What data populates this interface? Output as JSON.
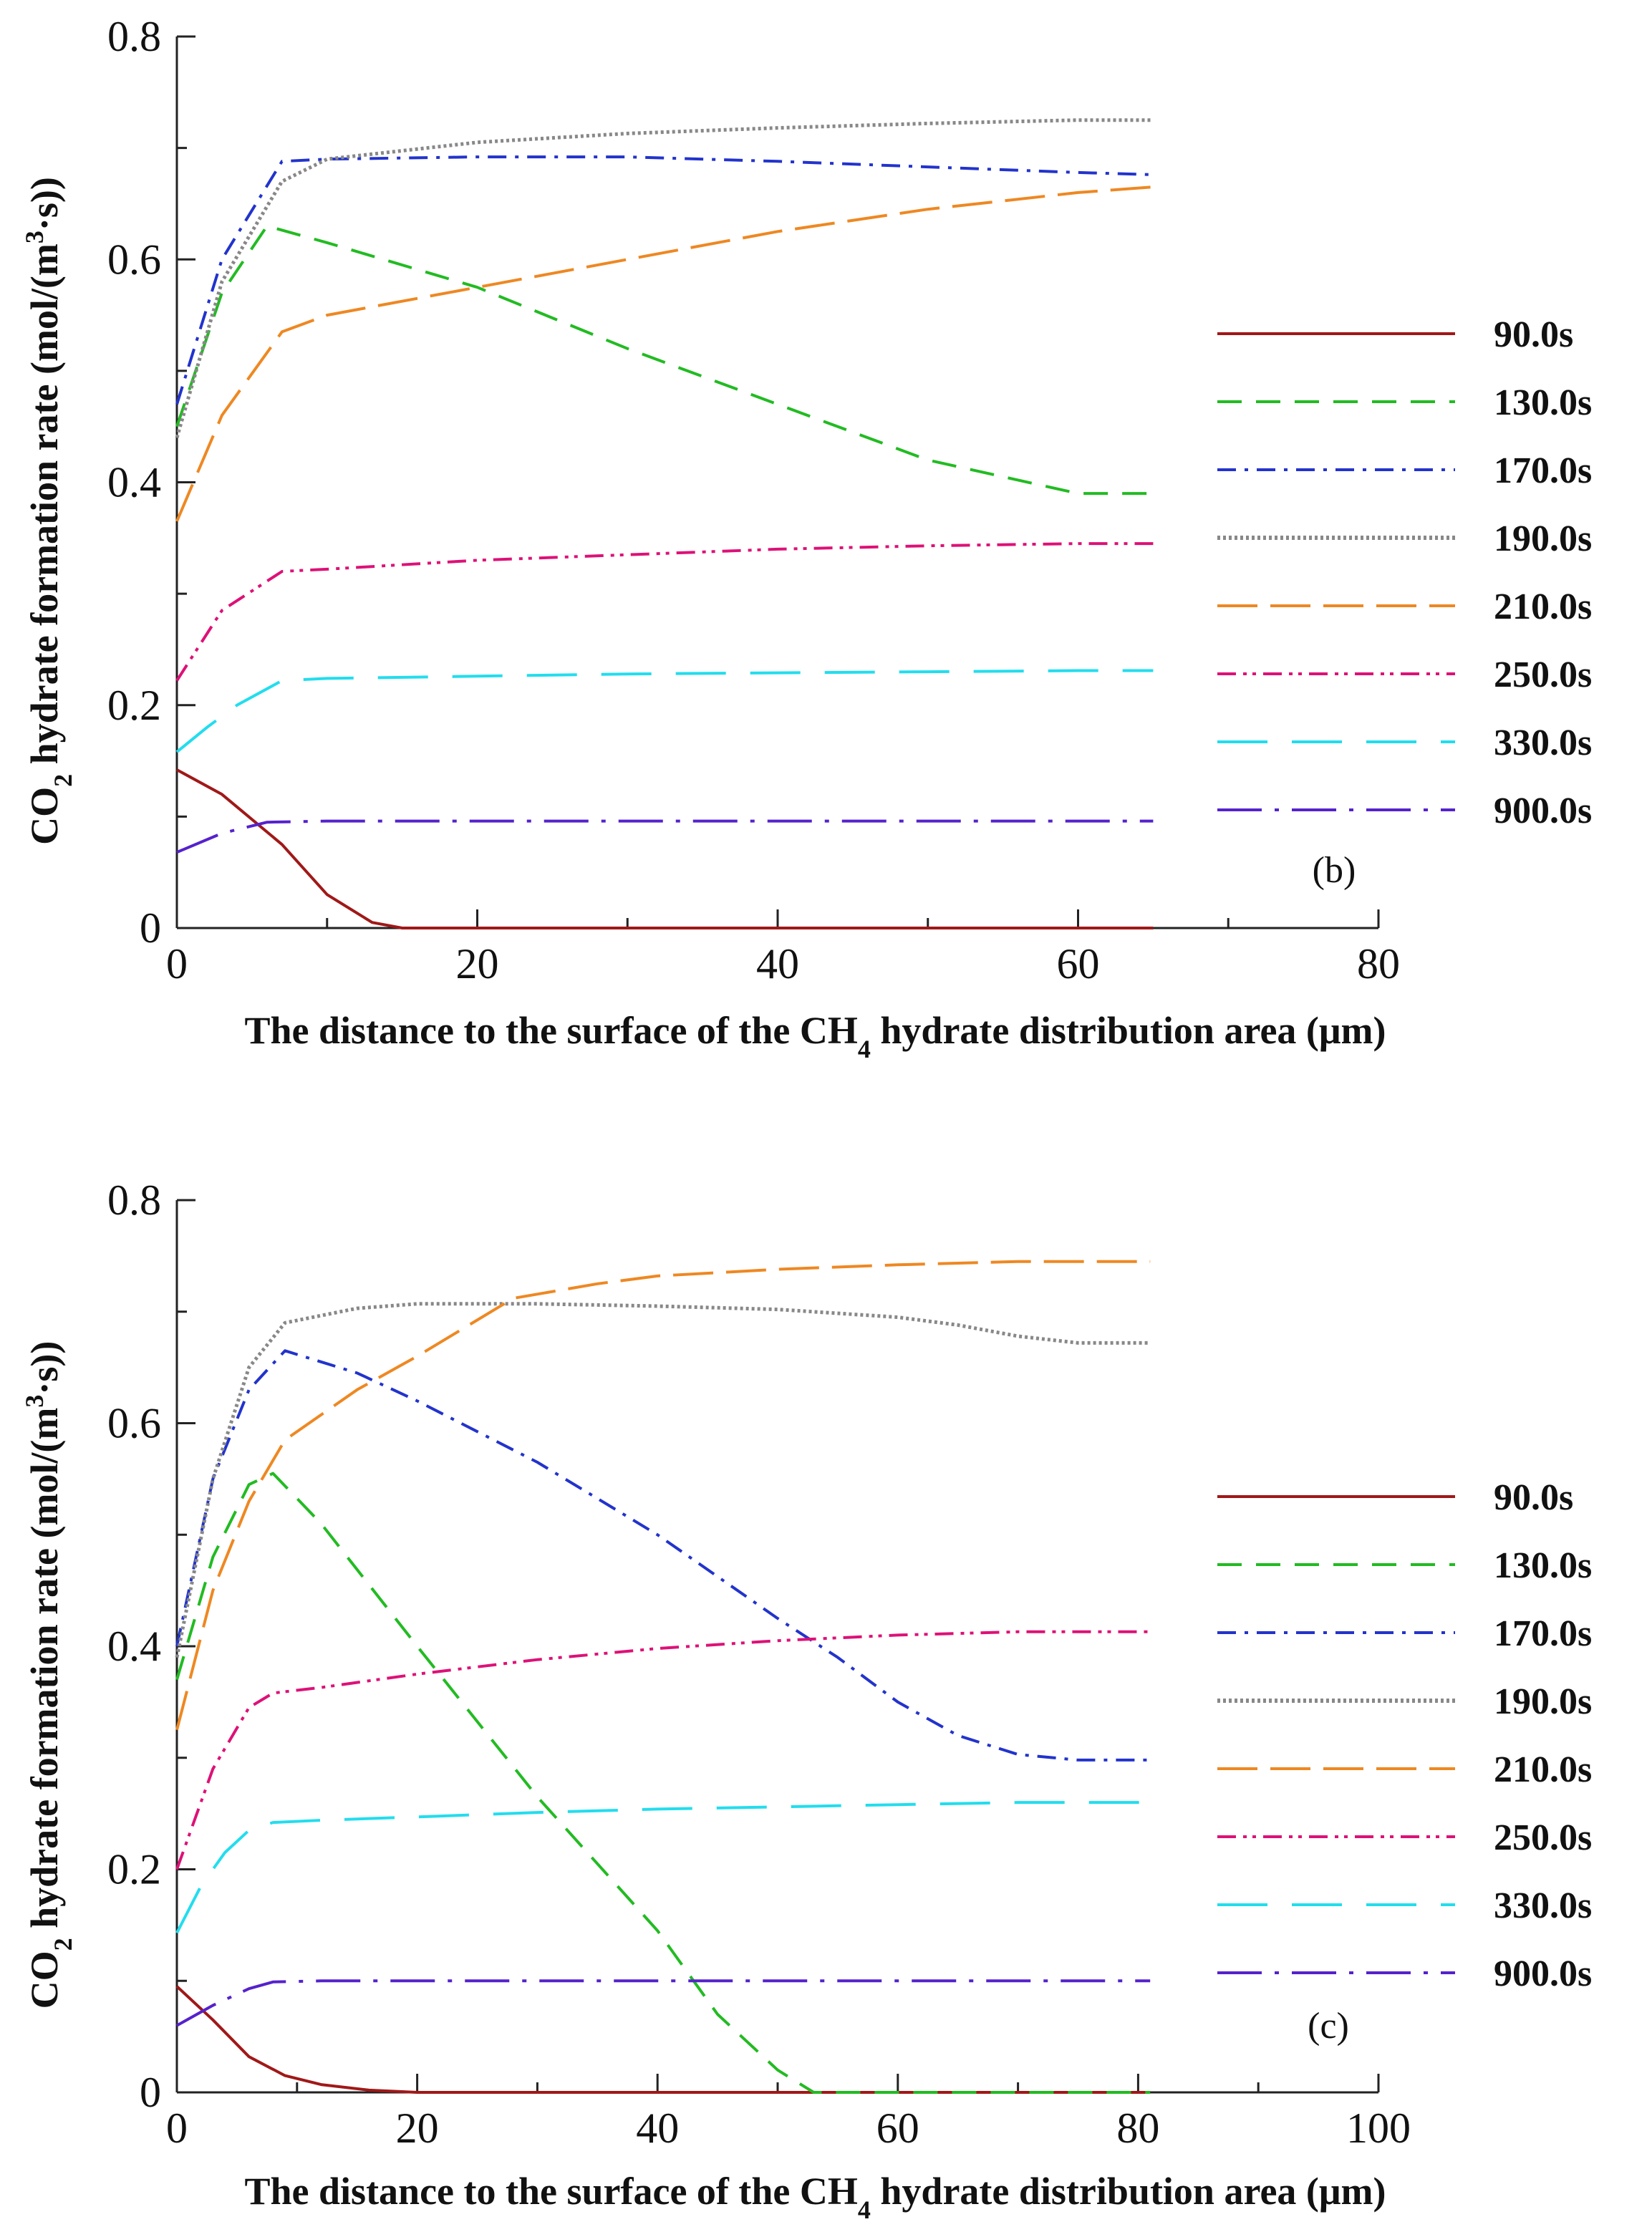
{
  "chart_data": [
    {
      "type": "line",
      "panel_label": "(b)",
      "xlabel": {
        "pre": "The distance to the surface of the CH",
        "sub": "4",
        "post": " hydrate distribution area (μm)"
      },
      "ylabel": {
        "pre": "CO",
        "sub": "2",
        "mid": " hydrate formation rate (mol/(m",
        "sup": "3",
        "post": "·s))"
      },
      "xlim": [
        0,
        80
      ],
      "ylim": [
        0,
        0.8
      ],
      "xticks": [
        0,
        20,
        40,
        60,
        80
      ],
      "xtick_labels": [
        "0",
        "20",
        "40",
        "60",
        "80"
      ],
      "yticks": [
        0,
        0.2,
        0.4,
        0.6,
        0.8
      ],
      "ytick_labels": [
        "0",
        "0.2",
        "0.4",
        "0.6",
        "0.8"
      ],
      "legend": "right",
      "series": [
        {
          "name": "90.0s",
          "color": "#a01818",
          "style": "solid",
          "x": [
            0,
            3,
            7,
            10,
            13,
            15,
            20,
            40,
            65
          ],
          "y": [
            0.142,
            0.12,
            0.075,
            0.03,
            0.005,
            0,
            0,
            0,
            0
          ]
        },
        {
          "name": "130.0s",
          "color": "#22bb22",
          "style": "dash",
          "x": [
            0,
            3,
            6,
            10,
            20,
            30,
            40,
            50,
            60,
            65
          ],
          "y": [
            0.45,
            0.57,
            0.63,
            0.615,
            0.575,
            0.52,
            0.47,
            0.42,
            0.39,
            0.39
          ]
        },
        {
          "name": "170.0s",
          "color": "#2233cc",
          "style": "dashdot",
          "x": [
            0,
            3,
            7,
            10,
            20,
            30,
            40,
            50,
            60,
            65
          ],
          "y": [
            0.47,
            0.6,
            0.688,
            0.69,
            0.692,
            0.692,
            0.688,
            0.683,
            0.678,
            0.676
          ]
        },
        {
          "name": "190.0s",
          "color": "#888888",
          "style": "dot",
          "x": [
            0,
            3,
            7,
            10,
            20,
            30,
            40,
            50,
            60,
            65
          ],
          "y": [
            0.44,
            0.58,
            0.67,
            0.69,
            0.705,
            0.713,
            0.718,
            0.722,
            0.725,
            0.725
          ]
        },
        {
          "name": "210.0s",
          "color": "#ee8822",
          "style": "longdash",
          "x": [
            0,
            3,
            7,
            10,
            20,
            30,
            40,
            50,
            60,
            65
          ],
          "y": [
            0.365,
            0.46,
            0.535,
            0.55,
            0.575,
            0.6,
            0.625,
            0.645,
            0.66,
            0.665
          ]
        },
        {
          "name": "250.0s",
          "color": "#dd1177",
          "style": "dashdotdot",
          "x": [
            0,
            3,
            7,
            10,
            20,
            30,
            40,
            50,
            60,
            65
          ],
          "y": [
            0.222,
            0.285,
            0.32,
            0.322,
            0.33,
            0.335,
            0.34,
            0.343,
            0.345,
            0.345
          ]
        },
        {
          "name": "330.0s",
          "color": "#22ddee",
          "style": "verylongdash",
          "x": [
            0,
            2,
            4,
            7,
            10,
            20,
            30,
            40,
            50,
            60,
            65
          ],
          "y": [
            0.158,
            0.18,
            0.2,
            0.222,
            0.224,
            0.226,
            0.228,
            0.229,
            0.23,
            0.231,
            0.231
          ]
        },
        {
          "name": "900.0s",
          "color": "#5522cc",
          "style": "longdashdot",
          "x": [
            0,
            3,
            6,
            10,
            20,
            30,
            40,
            50,
            60,
            65
          ],
          "y": [
            0.068,
            0.085,
            0.095,
            0.096,
            0.096,
            0.096,
            0.096,
            0.096,
            0.096,
            0.096
          ]
        }
      ]
    },
    {
      "type": "line",
      "panel_label": "(c)",
      "xlabel": {
        "pre": "The distance to the surface of the CH",
        "sub": "4",
        "post": " hydrate distribution area (μm)"
      },
      "ylabel": {
        "pre": "CO",
        "sub": "2",
        "mid": " hydrate formation rate (mol/(m",
        "sup": "3",
        "post": "·s))"
      },
      "xlim": [
        0,
        100
      ],
      "ylim": [
        0,
        0.8
      ],
      "xticks": [
        0,
        20,
        40,
        60,
        80,
        100
      ],
      "xtick_labels": [
        "0",
        "20",
        "40",
        "60",
        "80",
        "100"
      ],
      "yticks": [
        0,
        0.2,
        0.4,
        0.6,
        0.8
      ],
      "ytick_labels": [
        "0",
        "0.2",
        "0.4",
        "0.6",
        "0.8"
      ],
      "legend": "right",
      "series": [
        {
          "name": "90.0s",
          "color": "#a01818",
          "style": "solid",
          "x": [
            0,
            3,
            6,
            9,
            12,
            16,
            20,
            40,
            60,
            81
          ],
          "y": [
            0.095,
            0.065,
            0.032,
            0.015,
            0.007,
            0.002,
            0,
            0,
            0,
            0
          ]
        },
        {
          "name": "130.0s",
          "color": "#22bb22",
          "style": "dash",
          "x": [
            0,
            3,
            6,
            8,
            12,
            20,
            30,
            40,
            45,
            50,
            53,
            60,
            70,
            81
          ],
          "y": [
            0.37,
            0.48,
            0.545,
            0.555,
            0.51,
            0.4,
            0.265,
            0.145,
            0.07,
            0.02,
            0,
            0,
            0,
            0
          ]
        },
        {
          "name": "170.0s",
          "color": "#2233cc",
          "style": "dashdot",
          "x": [
            0,
            3,
            6,
            9,
            15,
            20,
            30,
            40,
            50,
            55,
            60,
            65,
            70,
            75,
            81
          ],
          "y": [
            0.4,
            0.55,
            0.63,
            0.665,
            0.645,
            0.62,
            0.565,
            0.5,
            0.425,
            0.39,
            0.35,
            0.32,
            0.303,
            0.298,
            0.298
          ]
        },
        {
          "name": "190.0s",
          "color": "#888888",
          "style": "dot",
          "x": [
            0,
            3,
            6,
            9,
            15,
            20,
            30,
            40,
            50,
            60,
            65,
            70,
            75,
            81
          ],
          "y": [
            0.39,
            0.55,
            0.65,
            0.69,
            0.703,
            0.707,
            0.707,
            0.705,
            0.702,
            0.695,
            0.688,
            0.678,
            0.672,
            0.672
          ]
        },
        {
          "name": "210.0s",
          "color": "#ee8822",
          "style": "longdash",
          "x": [
            0,
            3,
            6,
            9,
            15,
            20,
            28,
            35,
            40,
            50,
            60,
            70,
            81
          ],
          "y": [
            0.325,
            0.45,
            0.53,
            0.585,
            0.63,
            0.66,
            0.712,
            0.725,
            0.732,
            0.738,
            0.742,
            0.745,
            0.745
          ]
        },
        {
          "name": "250.0s",
          "color": "#dd1177",
          "style": "dashdotdot",
          "x": [
            0,
            3,
            6,
            8,
            12,
            20,
            30,
            40,
            50,
            60,
            70,
            81
          ],
          "y": [
            0.2,
            0.29,
            0.345,
            0.358,
            0.363,
            0.375,
            0.388,
            0.398,
            0.405,
            0.41,
            0.413,
            0.413
          ]
        },
        {
          "name": "330.0s",
          "color": "#22ddee",
          "style": "verylongdash",
          "x": [
            0,
            2,
            4,
            6,
            8,
            12,
            20,
            30,
            40,
            50,
            60,
            70,
            81
          ],
          "y": [
            0.143,
            0.185,
            0.215,
            0.235,
            0.242,
            0.244,
            0.247,
            0.251,
            0.254,
            0.256,
            0.258,
            0.26,
            0.26
          ]
        },
        {
          "name": "900.0s",
          "color": "#5522cc",
          "style": "longdashdot",
          "x": [
            0,
            3,
            6,
            8,
            12,
            20,
            40,
            60,
            81
          ],
          "y": [
            0.06,
            0.078,
            0.093,
            0.099,
            0.1,
            0.1,
            0.1,
            0.1,
            0.1
          ]
        }
      ]
    }
  ]
}
